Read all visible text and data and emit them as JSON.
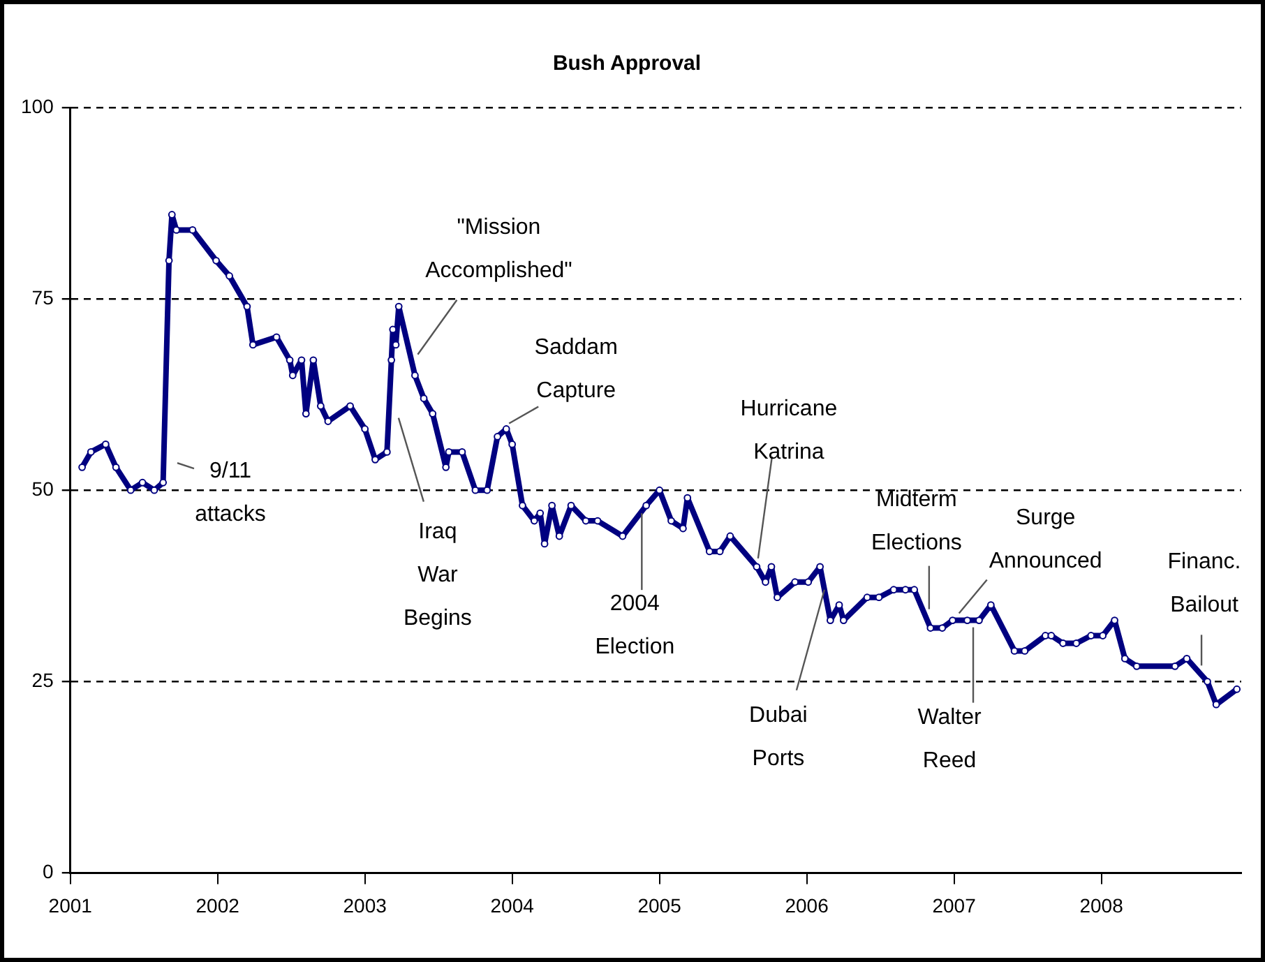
{
  "chart_data": {
    "type": "line",
    "title": "Bush Approval",
    "x": [
      2001.08,
      2001.14,
      2001.24,
      2001.31,
      2001.41,
      2001.49,
      2001.57,
      2001.63,
      2001.67,
      2001.69,
      2001.72,
      2001.83,
      2001.99,
      2002.08,
      2002.2,
      2002.24,
      2002.4,
      2002.49,
      2002.51,
      2002.57,
      2002.6,
      2002.65,
      2002.7,
      2002.75,
      2002.9,
      2003.0,
      2003.07,
      2003.15,
      2003.18,
      2003.19,
      2003.21,
      2003.23,
      2003.34,
      2003.4,
      2003.46,
      2003.55,
      2003.57,
      2003.66,
      2003.75,
      2003.83,
      2003.9,
      2003.96,
      2004.0,
      2004.07,
      2004.15,
      2004.19,
      2004.22,
      2004.27,
      2004.32,
      2004.4,
      2004.5,
      2004.58,
      2004.75,
      2004.91,
      2005.0,
      2005.08,
      2005.16,
      2005.19,
      2005.34,
      2005.41,
      2005.48,
      2005.66,
      2005.72,
      2005.76,
      2005.8,
      2005.92,
      2006.01,
      2006.09,
      2006.16,
      2006.22,
      2006.25,
      2006.41,
      2006.49,
      2006.59,
      2006.67,
      2006.73,
      2006.84,
      2006.92,
      2006.99,
      2007.09,
      2007.17,
      2007.25,
      2007.41,
      2007.48,
      2007.62,
      2007.66,
      2007.74,
      2007.83,
      2007.93,
      2008.01,
      2008.09,
      2008.16,
      2008.24,
      2008.5,
      2008.58,
      2008.72,
      2008.78,
      2008.92
    ],
    "series": [
      {
        "color": "#000080",
        "values": [
          53,
          55,
          56,
          53,
          50,
          51,
          50,
          51,
          80,
          86,
          84,
          84,
          80,
          78,
          74,
          69,
          70,
          67,
          65,
          67,
          60,
          67,
          61,
          59,
          61,
          58,
          54,
          55,
          67,
          71,
          69,
          74,
          65,
          62,
          60,
          53,
          55,
          55,
          50,
          50,
          57,
          58,
          56,
          48,
          46,
          47,
          43,
          48,
          44,
          48,
          46,
          46,
          44,
          48,
          50,
          46,
          45,
          49,
          42,
          42,
          44,
          40,
          38,
          40,
          36,
          38,
          38,
          40,
          33,
          35,
          33,
          36,
          36,
          37,
          37,
          37,
          32,
          32,
          33,
          33,
          33,
          35,
          29,
          29,
          31,
          31,
          30,
          30,
          31,
          31,
          33,
          28,
          27,
          27,
          28,
          25,
          22,
          24
        ]
      }
    ],
    "xlim": [
      2001,
      2008.95
    ],
    "xticks": [
      2001,
      2002,
      2003,
      2004,
      2005,
      2006,
      2007,
      2008
    ],
    "ylim": [
      0,
      100
    ],
    "yticks": [
      0,
      25,
      50,
      75,
      100
    ],
    "grid": "y",
    "legend": false,
    "marker": "circle",
    "line_style": "solid",
    "annotations": [
      {
        "text": "9/11\nattacks",
        "x": 2001.66,
        "y": 51
      },
      {
        "text": "\"Mission\nAccomplished\"",
        "x": 2003.34,
        "y": 67
      },
      {
        "text": "Saddam\nCapture",
        "x": 2003.96,
        "y": 58
      },
      {
        "text": "Iraq\nWar\nBegins",
        "x": 2003.2,
        "y": 60
      },
      {
        "text": "2004\nElection",
        "x": 2004.88,
        "y": 47
      },
      {
        "text": "Hurricane\nKatrina",
        "x": 2005.66,
        "y": 40
      },
      {
        "text": "Dubai\nPorts",
        "x": 2006.12,
        "y": 37
      },
      {
        "text": "Midterm\nElections",
        "x": 2006.84,
        "y": 33
      },
      {
        "text": "Surge\nAnnounced",
        "x": 2007.1,
        "y": 33
      },
      {
        "text": "Walter\nReed",
        "x": 2007.13,
        "y": 33
      },
      {
        "text": "Financ.\nBailout",
        "x": 2008.68,
        "y": 26
      }
    ]
  }
}
